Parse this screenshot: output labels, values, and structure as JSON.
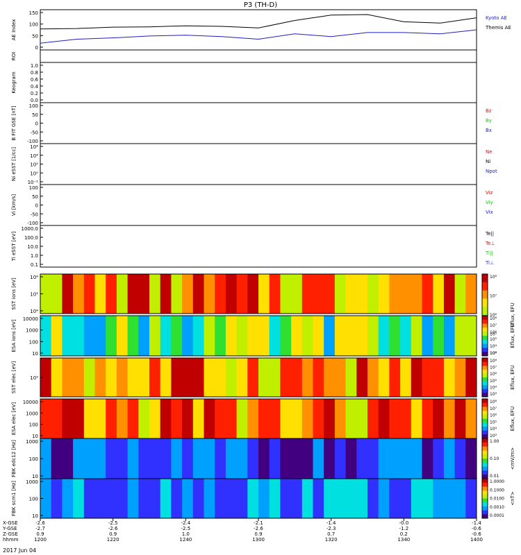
{
  "title": "P3 (TH-D)",
  "date_label": "2017 Jun 04",
  "colors": {
    "black": "#000000",
    "blue": "#1c1cc8",
    "red": "#d01010",
    "green": "#22c022"
  },
  "panels": [
    {
      "id": "ae",
      "ylabel": "AE Index",
      "ticks": [
        "150",
        "100",
        "50",
        "0"
      ],
      "legend": [
        {
          "text": "Kyoto AE",
          "color": "#1c1cc8"
        },
        {
          "text": "Themis AE",
          "color": "#000000"
        }
      ]
    },
    {
      "id": "roi",
      "ylabel": "ROI",
      "ticks": [],
      "legend": []
    },
    {
      "id": "keogram",
      "ylabel": "Keogram",
      "ticks": [
        "1.0",
        "0.8",
        "0.6",
        "0.4",
        "0.2",
        "0.0"
      ],
      "legend": []
    },
    {
      "id": "bfield",
      "ylabel": "B FIT GSE [nT]",
      "ticks": [
        "100",
        "50",
        "0",
        "-50",
        "-100"
      ],
      "legend": [
        {
          "text": "Bz",
          "color": "#d01010"
        },
        {
          "text": "By",
          "color": "#22c022"
        },
        {
          "text": "Bx",
          "color": "#1c1cc8"
        }
      ]
    },
    {
      "id": "density",
      "ylabel": "Ni eSST [1/cc]",
      "ticks": [
        "10⁶",
        "10⁴",
        "10²",
        "10⁰",
        "10⁻²"
      ],
      "legend": [
        {
          "text": "Ne",
          "color": "#d01010"
        },
        {
          "text": "Ni",
          "color": "#000000"
        },
        {
          "text": "Npot",
          "color": "#1c1cc8"
        }
      ]
    },
    {
      "id": "velocity",
      "ylabel": "Vi [km/s]",
      "ticks": [
        "100",
        "50",
        "0",
        "-50",
        "-100"
      ],
      "legend": [
        {
          "text": "Viz",
          "color": "#d01010"
        },
        {
          "text": "Viy",
          "color": "#22c022"
        },
        {
          "text": "Vix",
          "color": "#1c1cc8"
        }
      ]
    },
    {
      "id": "temperature",
      "ylabel": "Ti eSST [eV]",
      "ticks": [
        "1000.0",
        "100.0",
        "10.0",
        "1.0",
        "0.1"
      ],
      "legend": [
        {
          "text": "Te||",
          "color": "#000000"
        },
        {
          "text": "Te⊥",
          "color": "#d01010"
        },
        {
          "text": "Ti||",
          "color": "#22c022"
        },
        {
          "text": "Ti⊥",
          "color": "#1c1cc8"
        }
      ]
    },
    {
      "id": "sst_i",
      "ylabel": "SST ions [eV]",
      "ticks": [
        "10⁶",
        "10⁵",
        "10⁴"
      ],
      "legend": []
    },
    {
      "id": "esa_i",
      "ylabel": "ESA ions [eV]",
      "ticks": [
        "10000",
        "1000",
        "100",
        "10"
      ],
      "legend": []
    },
    {
      "id": "sst_e",
      "ylabel": "SST elec [eV]",
      "ticks": [
        "10⁵"
      ],
      "legend": []
    },
    {
      "id": "esa_e",
      "ylabel": "ESA elec [eV]",
      "ticks": [
        "10000",
        "1000",
        "100",
        "10"
      ],
      "legend": []
    },
    {
      "id": "fbk_e",
      "ylabel": "FBK edc12 [Hz]",
      "ticks": [
        "1000",
        "100",
        "10"
      ],
      "legend": []
    },
    {
      "id": "fbk_b",
      "ylabel": "FBK scm1 [Hz]",
      "ticks": [
        "1000",
        "100",
        "10"
      ],
      "legend": []
    }
  ],
  "colorbars": [
    {
      "label": "Eflux, EFU",
      "ticks": [
        "10⁸",
        "10⁷",
        "10⁶",
        "10⁵",
        "10⁴"
      ]
    },
    {
      "label": "Eflux, EFU",
      "ticks": [
        "10⁸",
        "10⁷",
        "10⁶",
        "10⁵",
        "10⁴",
        "10³"
      ]
    },
    {
      "label": "Eflux, EFU",
      "ticks": [
        "10⁸",
        "10⁷",
        "10⁶",
        "10⁵",
        "10⁴",
        "10³"
      ]
    },
    {
      "label": "Eflux, EFU",
      "ticks": [
        "10⁸",
        "10⁷",
        "10⁶",
        "10⁵",
        "10⁴",
        "10³"
      ]
    },
    {
      "label": "<mV/m>",
      "ticks": [
        "1.00",
        "0.10",
        "0.01"
      ]
    },
    {
      "label": "<nT>",
      "ticks": [
        "1.0000",
        "0.1000",
        "0.0100",
        "0.0010",
        "0.0001"
      ]
    }
  ],
  "xaxis": {
    "row_labels": [
      "X-GSE",
      "Y-GSE",
      "Z-GSE",
      "hhmm"
    ],
    "columns": [
      [
        "-2.6",
        "-2.7",
        "0.9",
        "1200"
      ],
      [
        "-2.5",
        "-2.6",
        "0.9",
        "1220"
      ],
      [
        "-2.4",
        "-2.5",
        "1.0",
        "1240"
      ],
      [
        "-2.1",
        "-2.6",
        "0.9",
        "1300"
      ],
      [
        "-1.4",
        "-2.3",
        "0.7",
        "1320"
      ],
      [
        "-0.0",
        "-1.2",
        "0.2",
        "1340"
      ],
      [
        "-1.4",
        "-0.6",
        "-0.6",
        "1400"
      ]
    ]
  },
  "chart_data": {
    "type": "line",
    "title": "P3 (TH-D)",
    "x_unit": "hhmm",
    "x": [
      1200,
      1210,
      1220,
      1230,
      1240,
      1250,
      1300,
      1310,
      1320,
      1330,
      1340,
      1350,
      1400
    ],
    "series": [
      {
        "name": "Themis AE",
        "values": [
          78,
          80,
          85,
          86,
          90,
          88,
          82,
          110,
          130,
          132,
          105,
          100,
          120
        ]
      },
      {
        "name": "Kyoto AE",
        "values": [
          25,
          40,
          45,
          52,
          55,
          50,
          40,
          60,
          50,
          65,
          65,
          60,
          75
        ]
      }
    ],
    "ylabel": "AE Index",
    "ylim": [
      0,
      150
    ]
  }
}
